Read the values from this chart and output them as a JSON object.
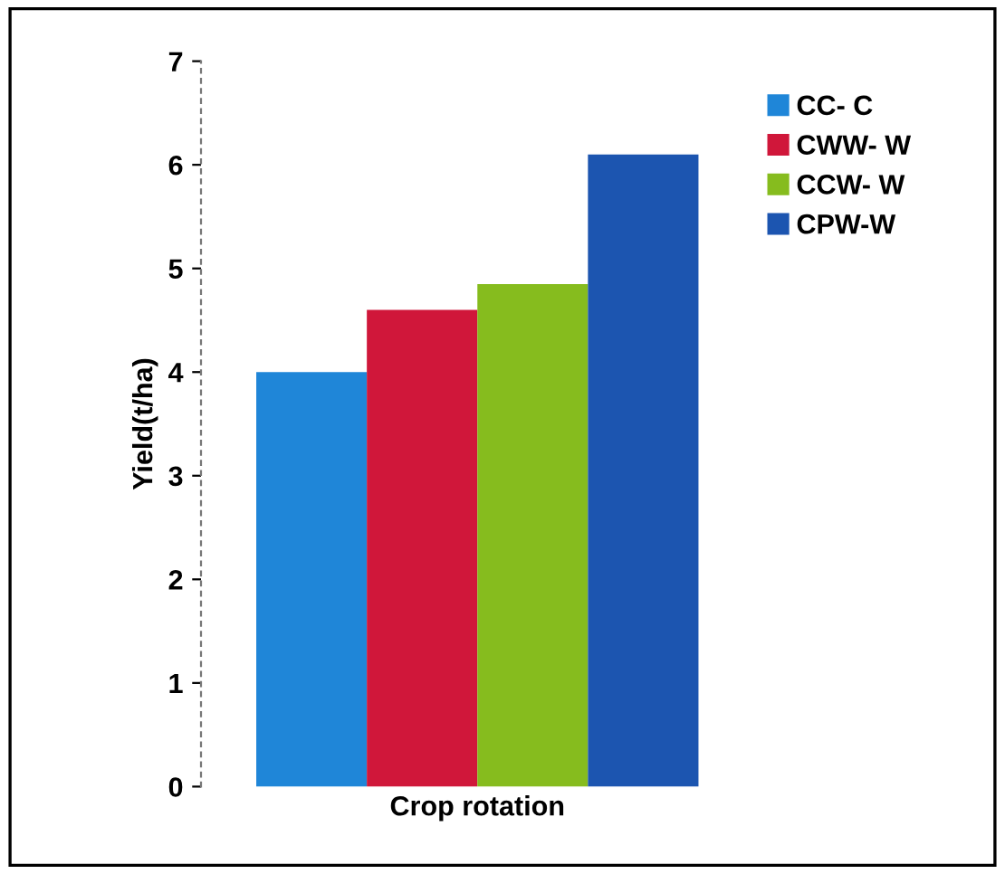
{
  "chart_data": {
    "type": "bar",
    "ylabel": "Yield(t/ha)",
    "xlabel": "Crop rotation",
    "categories": [
      null
    ],
    "series": [
      {
        "name": "CC- C",
        "color": "#1f86d8",
        "values": [
          4.0
        ]
      },
      {
        "name": "CWW- W",
        "color": "#d0173a",
        "values": [
          4.6
        ]
      },
      {
        "name": "CCW- W",
        "color": "#86bc1e",
        "values": [
          4.85
        ]
      },
      {
        "name": "CPW-W",
        "color": "#1c55b0",
        "values": [
          6.1
        ]
      }
    ],
    "ylim": [
      0,
      7
    ],
    "yticks": [
      0,
      1,
      2,
      3,
      4,
      5,
      6,
      7
    ],
    "grid": false,
    "legend": "top right"
  }
}
